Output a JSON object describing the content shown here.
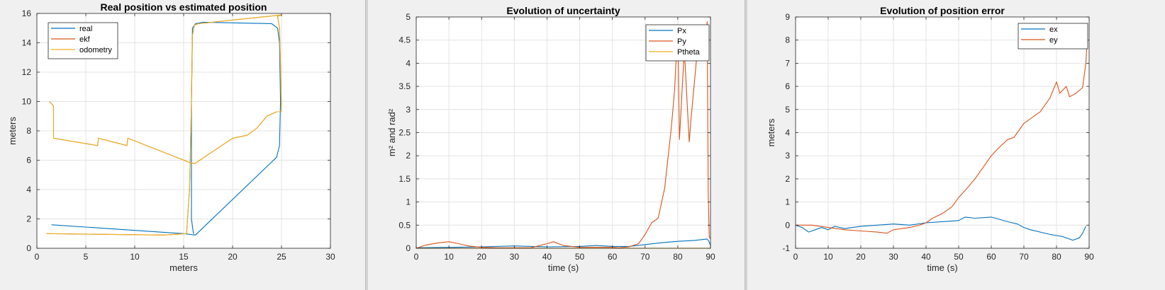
{
  "colors": {
    "real": "#0072BD",
    "ekf": "#D95319",
    "odometry": "#EDB120",
    "background": "#f0f0f0",
    "axes_bg": "#ffffff",
    "grid": "#e3e3e3"
  },
  "chart_data": [
    {
      "type": "line",
      "title": "Real position vs estimated position",
      "xlabel": "meters",
      "ylabel": "meters",
      "xlim": [
        0,
        30
      ],
      "ylim": [
        0,
        16
      ],
      "xticks": [
        0,
        5,
        10,
        15,
        20,
        25,
        30
      ],
      "yticks": [
        0,
        2,
        4,
        6,
        8,
        10,
        12,
        14,
        16
      ],
      "grid": true,
      "legend_position": "top-left",
      "series": [
        {
          "name": "real",
          "color": "#0072BD",
          "x": [
            1.5,
            15.0,
            16.2,
            24.5,
            24.8,
            24.9,
            24.8,
            24.6,
            24.0,
            17.0,
            16.2,
            15.9,
            15.8,
            15.8,
            16.0
          ],
          "y": [
            1.6,
            1.0,
            0.9,
            6.2,
            7.0,
            10.0,
            14.0,
            15.0,
            15.3,
            15.4,
            15.3,
            15.0,
            10.0,
            2.0,
            1.0
          ]
        },
        {
          "name": "ekf",
          "color": "#D95319",
          "x": [
            1.3,
            1.7,
            1.7,
            6.2,
            6.3,
            9.2,
            9.3,
            15.8,
            16.2,
            20.0,
            21.5,
            22.5,
            23.5,
            24.5,
            25.0,
            24.9,
            24.8,
            24.6,
            25.0,
            16.5,
            16.1,
            15.9,
            15.8,
            15.6,
            15.3,
            13.0,
            1.0
          ],
          "y": [
            10.0,
            9.7,
            7.5,
            7.0,
            7.5,
            7.0,
            7.5,
            5.8,
            5.8,
            7.5,
            7.7,
            8.2,
            9.0,
            9.3,
            9.3,
            12.5,
            15.0,
            15.8,
            15.9,
            15.3,
            15.2,
            14.5,
            10.0,
            4.0,
            1.0,
            0.9,
            1.0
          ]
        },
        {
          "name": "odometry",
          "color": "#EDB120",
          "x": [
            1.3,
            1.7,
            1.7,
            6.2,
            6.3,
            9.2,
            9.3,
            15.8,
            16.2,
            20.0,
            21.5,
            22.5,
            23.5,
            24.5,
            25.0,
            24.9,
            24.8,
            24.6,
            25.0,
            16.5,
            16.1,
            15.9,
            15.8,
            15.6,
            15.3,
            13.0,
            1.0
          ],
          "y": [
            10.0,
            9.7,
            7.5,
            7.0,
            7.5,
            7.0,
            7.5,
            5.8,
            5.8,
            7.5,
            7.7,
            8.2,
            9.0,
            9.3,
            9.3,
            12.5,
            15.0,
            15.8,
            15.9,
            15.3,
            15.2,
            14.5,
            10.0,
            4.0,
            1.0,
            0.9,
            1.0
          ]
        }
      ]
    },
    {
      "type": "line",
      "title": "Evolution of uncertainty",
      "xlabel": "time (s)",
      "ylabel": "m² and rad²",
      "xlim": [
        0,
        90
      ],
      "ylim": [
        0,
        5
      ],
      "xticks": [
        0,
        10,
        20,
        30,
        40,
        50,
        60,
        70,
        80,
        90
      ],
      "yticks": [
        0,
        0.5,
        1,
        1.5,
        2,
        2.5,
        3,
        3.5,
        4,
        4.5,
        5
      ],
      "grid": true,
      "legend_position": "top-right",
      "series": [
        {
          "name": "Px",
          "color": "#0072BD",
          "x": [
            0,
            10,
            20,
            30,
            40,
            50,
            55,
            60,
            65,
            70,
            75,
            80,
            85,
            89,
            89.5,
            90
          ],
          "y": [
            0.01,
            0.02,
            0.03,
            0.05,
            0.03,
            0.04,
            0.06,
            0.04,
            0.04,
            0.08,
            0.12,
            0.15,
            0.17,
            0.2,
            0.15,
            0.06
          ]
        },
        {
          "name": "Py",
          "color": "#D95319",
          "x": [
            0,
            3,
            7,
            10,
            13,
            16,
            20,
            25,
            30,
            35,
            40,
            42,
            45,
            50,
            55,
            60,
            62,
            65,
            68,
            70,
            72,
            74,
            76,
            78,
            79,
            80,
            80.5,
            82,
            83.5,
            84,
            86,
            88,
            89,
            89.3,
            89.6,
            90
          ],
          "y": [
            0.0,
            0.07,
            0.12,
            0.14,
            0.1,
            0.05,
            0.02,
            0.01,
            0.01,
            0.01,
            0.1,
            0.14,
            0.06,
            0.02,
            0.02,
            0.02,
            0.01,
            0.03,
            0.1,
            0.3,
            0.55,
            0.65,
            1.3,
            2.6,
            3.4,
            4.8,
            2.35,
            4.3,
            2.3,
            2.75,
            4.3,
            4.1,
            4.9,
            1.2,
            0.25,
            0.2
          ]
        },
        {
          "name": "Ptheta",
          "color": "#EDB120",
          "x": [
            0,
            30,
            60,
            90
          ],
          "y": [
            0.001,
            0.001,
            0.001,
            0.001
          ]
        }
      ]
    },
    {
      "type": "line",
      "title": "Evolution of position error",
      "xlabel": "time (s)",
      "ylabel": "meters",
      "xlim": [
        0,
        90
      ],
      "ylim": [
        -1,
        9
      ],
      "xticks": [
        0,
        10,
        20,
        30,
        40,
        50,
        60,
        70,
        80,
        90
      ],
      "yticks": [
        -1,
        0,
        1,
        2,
        3,
        4,
        5,
        6,
        7,
        8,
        9
      ],
      "grid": true,
      "legend_position": "top-right",
      "series": [
        {
          "name": "ex",
          "color": "#0072BD",
          "x": [
            0,
            2,
            4,
            6,
            8,
            10,
            12,
            15,
            20,
            25,
            30,
            35,
            40,
            45,
            50,
            52,
            55,
            60,
            65,
            68,
            70,
            72,
            75,
            78,
            80,
            82,
            85,
            87,
            88,
            89
          ],
          "y": [
            0.0,
            -0.1,
            -0.3,
            -0.2,
            -0.1,
            -0.2,
            -0.05,
            -0.15,
            -0.05,
            0.0,
            0.05,
            0.0,
            0.1,
            0.15,
            0.2,
            0.35,
            0.3,
            0.35,
            0.15,
            0.05,
            -0.1,
            -0.2,
            -0.3,
            -0.4,
            -0.45,
            -0.5,
            -0.65,
            -0.55,
            -0.35,
            -0.05
          ]
        },
        {
          "name": "ey",
          "color": "#D95319",
          "x": [
            0,
            5,
            10,
            15,
            20,
            25,
            28,
            30,
            35,
            38,
            40,
            42,
            45,
            48,
            50,
            52,
            55,
            58,
            60,
            62,
            65,
            67,
            70,
            75,
            78,
            80,
            81,
            83,
            84,
            86,
            88,
            89,
            89.5
          ],
          "y": [
            0.0,
            0.0,
            -0.1,
            -0.2,
            -0.25,
            -0.3,
            -0.35,
            -0.2,
            -0.1,
            0.0,
            0.1,
            0.3,
            0.5,
            0.8,
            1.2,
            1.5,
            2.0,
            2.6,
            3.0,
            3.3,
            3.7,
            3.8,
            4.4,
            4.9,
            5.5,
            6.2,
            5.7,
            6.0,
            5.55,
            5.7,
            5.95,
            7.0,
            8.3
          ]
        }
      ]
    }
  ]
}
